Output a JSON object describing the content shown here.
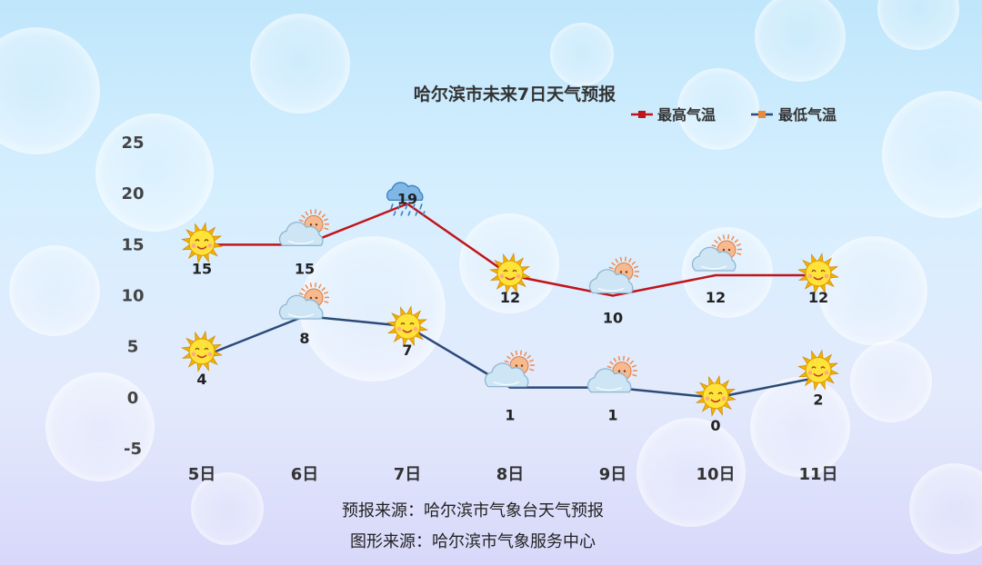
{
  "chart_data": {
    "type": "line",
    "title": "哈尔滨市未来7日天气预报",
    "categories": [
      "5日",
      "6日",
      "7日",
      "8日",
      "9日",
      "10日",
      "11日"
    ],
    "ylim": [
      -5,
      25
    ],
    "yticks": [
      "25",
      "20",
      "15",
      "10",
      "5",
      "0",
      "-5"
    ],
    "grid": false,
    "legend_position": "top-right",
    "series": [
      {
        "name": "最高气温",
        "values": [
          15,
          15,
          19,
          12,
          10,
          12,
          12
        ],
        "color": "#c0151a",
        "icons": [
          "sun-icon",
          "partly-cloudy-icon",
          "rain-cloud-icon",
          "sun-icon",
          "partly-cloudy-icon",
          "partly-cloudy-icon",
          "sun-icon"
        ]
      },
      {
        "name": "最低气温",
        "values": [
          4,
          8,
          7,
          1,
          1,
          0,
          2
        ],
        "color": "#2b4a78",
        "icons": [
          "sun-icon",
          "partly-cloudy-icon",
          "sun-icon",
          "partly-cloudy-icon",
          "partly-cloudy-icon",
          "sun-icon",
          "sun-icon"
        ]
      }
    ]
  },
  "footer": {
    "forecast_source": "预报来源：哈尔滨市气象台天气预报",
    "graphic_source": "图形来源：哈尔滨市气象服务中心"
  }
}
